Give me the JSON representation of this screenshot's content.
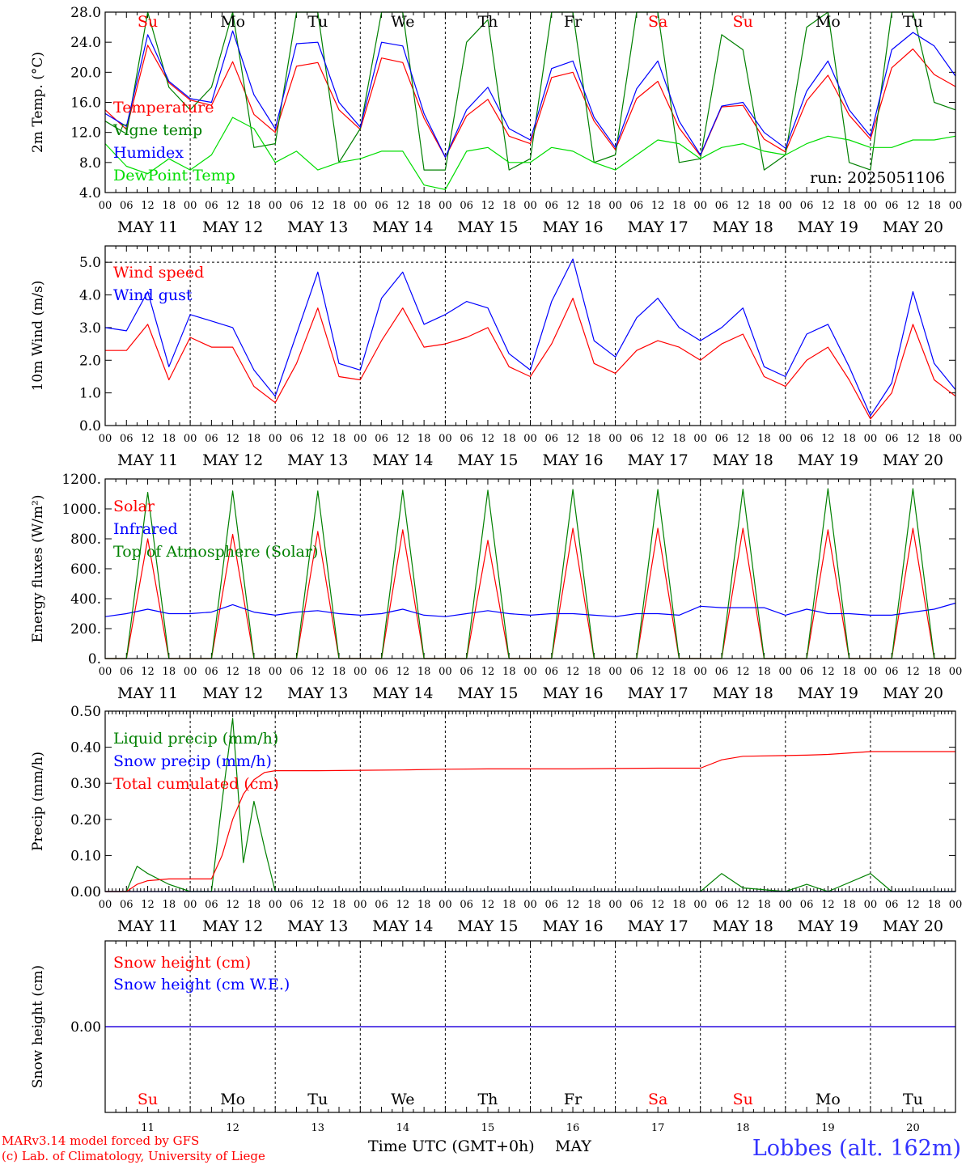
{
  "header": {
    "run_label": "run: 2025051106",
    "credit_line1": "MARv3.14 model forced by GFS",
    "credit_line2": "(c) Lab. of Climatology, University of Liege",
    "xaxis_title": "Time UTC (GMT+0h)",
    "month_label": "MAY",
    "station_label": "Lobbes (alt. 162m)"
  },
  "days": {
    "hour_ticks": [
      "00",
      "06",
      "12",
      "18"
    ],
    "final_tick": "00",
    "dates": [
      "MAY 11",
      "MAY 12",
      "MAY 13",
      "MAY 14",
      "MAY 15",
      "MAY 16",
      "MAY 17",
      "MAY 18",
      "MAY 19",
      "MAY 20"
    ],
    "weekdays": [
      "Su",
      "Mo",
      "Tu",
      "We",
      "Th",
      "Fr",
      "Sa",
      "Su",
      "Mo",
      "Tu"
    ],
    "weekend_flags": [
      true,
      false,
      false,
      false,
      false,
      false,
      true,
      true,
      false,
      false
    ],
    "day_numbers": [
      "11",
      "12",
      "13",
      "14",
      "15",
      "16",
      "17",
      "18",
      "19",
      "20"
    ]
  },
  "colors": {
    "red": "#ff0000",
    "blue": "#0000ff",
    "green": "#008000",
    "light_green": "#00dd00",
    "weekend": "#ff0000",
    "weekday": "#000000"
  },
  "chart_data": [
    {
      "type": "line",
      "ylabel": "2m Temp. (°C)",
      "ylim": [
        4.0,
        28.0
      ],
      "yticks": [
        "4.0",
        "8.0",
        "12.0",
        "16.0",
        "20.0",
        "24.0",
        "28.0"
      ],
      "x_hours": [
        0,
        6,
        12,
        18,
        24,
        30,
        36,
        42,
        48,
        54,
        60,
        66,
        72,
        78,
        84,
        90,
        96,
        102,
        108,
        114,
        120,
        126,
        132,
        138,
        144,
        150,
        156,
        162,
        168,
        174,
        180,
        186,
        192,
        198,
        204,
        210,
        216,
        222,
        228,
        234,
        240
      ],
      "series": [
        {
          "name": "Temperature",
          "color": "#ff0000",
          "values": [
            15.0,
            12.4,
            23.6,
            18.6,
            16.3,
            15.6,
            21.4,
            14.4,
            12.0,
            20.8,
            21.3,
            15.0,
            12.4,
            21.9,
            21.3,
            13.9,
            8.7,
            14.2,
            16.4,
            11.5,
            10.5,
            19.3,
            20.0,
            13.5,
            9.7,
            16.5,
            18.8,
            12.6,
            8.9,
            15.4,
            15.6,
            11.1,
            9.4,
            16.2,
            19.6,
            14.3,
            11.1,
            20.6,
            23.1,
            19.7,
            18.1
          ]
        },
        {
          "name": "Vigne temp",
          "color": "#008000",
          "values": [
            13.5,
            11.8,
            28.0,
            18.0,
            15.0,
            18.0,
            28.0,
            10.0,
            10.5,
            28.0,
            28.0,
            8.0,
            12.5,
            28.0,
            28.0,
            7.0,
            7.0,
            24.0,
            27.0,
            7.0,
            8.5,
            28.0,
            28.0,
            8.0,
            9.0,
            28.0,
            28.0,
            8.0,
            8.5,
            25.0,
            23.0,
            7.0,
            9.0,
            26.0,
            28.0,
            8.0,
            7.0,
            28.0,
            28.0,
            16.0,
            15.0
          ]
        },
        {
          "name": "Humidex",
          "color": "#0000ff",
          "values": [
            14.5,
            12.8,
            25.0,
            18.8,
            16.5,
            16.0,
            25.5,
            17.0,
            12.5,
            23.8,
            24.0,
            16.0,
            12.7,
            24.0,
            23.5,
            14.5,
            8.7,
            15.0,
            18.0,
            12.5,
            11.0,
            20.5,
            21.5,
            14.0,
            10.0,
            17.8,
            21.5,
            13.5,
            9.0,
            15.5,
            16.0,
            12.0,
            9.9,
            17.5,
            21.5,
            15.0,
            11.5,
            23.0,
            25.3,
            23.5,
            19.5
          ]
        },
        {
          "name": "DewPoint Temp",
          "color": "#00dd00",
          "values": [
            10.5,
            7.5,
            6.5,
            8.5,
            7.0,
            9.0,
            14.0,
            12.5,
            8.0,
            9.5,
            7.0,
            8.0,
            8.5,
            9.5,
            9.5,
            5.0,
            4.4,
            9.5,
            10.0,
            8.0,
            8.0,
            10.0,
            9.5,
            8.0,
            7.0,
            9.0,
            11.0,
            10.5,
            8.5,
            10.0,
            10.5,
            9.5,
            9.0,
            10.5,
            11.5,
            11.0,
            10.0,
            10.0,
            11.0,
            11.0,
            11.5
          ]
        }
      ]
    },
    {
      "type": "line",
      "ylabel": "10m Wind (m/s)",
      "ylim": [
        0.0,
        5.5
      ],
      "yticks": [
        "0.0",
        "1.0",
        "2.0",
        "3.0",
        "4.0",
        "5.0"
      ],
      "hline": 5.0,
      "x_hours": [
        0,
        6,
        12,
        18,
        24,
        30,
        36,
        42,
        48,
        54,
        60,
        66,
        72,
        78,
        84,
        90,
        96,
        102,
        108,
        114,
        120,
        126,
        132,
        138,
        144,
        150,
        156,
        162,
        168,
        174,
        180,
        186,
        192,
        198,
        204,
        210,
        216,
        222,
        228,
        234,
        240
      ],
      "series": [
        {
          "name": "Wind speed",
          "color": "#ff0000",
          "values": [
            2.3,
            2.3,
            3.1,
            1.4,
            2.7,
            2.4,
            2.4,
            1.2,
            0.7,
            1.9,
            3.6,
            1.5,
            1.4,
            2.6,
            3.6,
            2.4,
            2.5,
            2.7,
            3.0,
            1.8,
            1.5,
            2.5,
            3.9,
            1.9,
            1.6,
            2.3,
            2.6,
            2.4,
            2.0,
            2.5,
            2.8,
            1.5,
            1.2,
            2.0,
            2.4,
            1.4,
            0.2,
            1.0,
            3.1,
            1.4,
            0.9
          ]
        },
        {
          "name": "Wind gust",
          "color": "#0000ff",
          "values": [
            3.0,
            2.9,
            4.1,
            1.8,
            3.4,
            3.2,
            3.0,
            1.7,
            0.9,
            2.8,
            4.7,
            1.9,
            1.7,
            3.9,
            4.7,
            3.1,
            3.4,
            3.8,
            3.6,
            2.2,
            1.7,
            3.8,
            5.1,
            2.6,
            2.1,
            3.3,
            3.9,
            3.0,
            2.6,
            3.0,
            3.6,
            1.8,
            1.5,
            2.8,
            3.1,
            1.8,
            0.3,
            1.3,
            4.1,
            1.9,
            1.1
          ]
        }
      ]
    },
    {
      "type": "line",
      "ylabel": "Energy fluxes (W/m²)",
      "ylim": [
        0,
        1200
      ],
      "yticks": [
        "0.",
        "200.",
        "400.",
        "600.",
        "800.",
        "1000.",
        "1200."
      ],
      "x_hours": [
        0,
        6,
        12,
        18,
        24,
        30,
        36,
        42,
        48,
        54,
        60,
        66,
        72,
        78,
        84,
        90,
        96,
        102,
        108,
        114,
        120,
        126,
        132,
        138,
        144,
        150,
        156,
        162,
        168,
        174,
        180,
        186,
        192,
        198,
        204,
        210,
        216,
        222,
        228,
        234,
        240
      ],
      "series": [
        {
          "name": "Solar",
          "color": "#ff0000",
          "values": [
            0,
            0,
            800,
            0,
            0,
            0,
            830,
            0,
            0,
            0,
            850,
            0,
            0,
            0,
            860,
            0,
            0,
            0,
            790,
            0,
            0,
            0,
            870,
            0,
            0,
            0,
            870,
            0,
            0,
            0,
            870,
            0,
            0,
            0,
            860,
            0,
            0,
            0,
            870,
            0,
            0
          ]
        },
        {
          "name": "Infrared",
          "color": "#0000ff",
          "values": [
            280,
            300,
            330,
            300,
            300,
            310,
            360,
            310,
            290,
            310,
            320,
            300,
            290,
            300,
            330,
            290,
            280,
            300,
            320,
            300,
            290,
            300,
            300,
            290,
            280,
            300,
            300,
            290,
            350,
            340,
            340,
            340,
            290,
            330,
            300,
            300,
            290,
            290,
            310,
            330,
            370
          ]
        },
        {
          "name": "Top of Atmosphere (Solar)",
          "color": "#008000",
          "values": [
            0,
            0,
            1110,
            0,
            0,
            0,
            1120,
            0,
            0,
            0,
            1120,
            0,
            0,
            0,
            1125,
            0,
            0,
            0,
            1125,
            0,
            0,
            0,
            1130,
            0,
            0,
            0,
            1130,
            0,
            0,
            0,
            1132,
            0,
            0,
            0,
            1135,
            0,
            0,
            0,
            1135,
            0,
            0
          ]
        }
      ]
    },
    {
      "type": "line",
      "ylabel": "Precip (mm/h)",
      "ylim": [
        0.0,
        0.5
      ],
      "yticks": [
        "0.00",
        "0.10",
        "0.20",
        "0.30",
        "0.40",
        "0.50"
      ],
      "x_hours": [
        0,
        6,
        9,
        12,
        18,
        24,
        30,
        33,
        36,
        39,
        42,
        45,
        48,
        54,
        60,
        72,
        84,
        96,
        108,
        120,
        132,
        144,
        156,
        168,
        174,
        180,
        192,
        198,
        204,
        216,
        222,
        240
      ],
      "series": [
        {
          "name": "Liquid precip (mm/h)",
          "color": "#008000",
          "values": [
            0,
            0,
            0.07,
            0.05,
            0.02,
            0,
            0,
            0.25,
            0.48,
            0.08,
            0.25,
            0.12,
            0,
            0,
            0,
            0,
            0,
            0,
            0,
            0,
            0,
            0,
            0,
            0,
            0.05,
            0.01,
            0,
            0.02,
            0,
            0.05,
            0,
            0
          ]
        },
        {
          "name": "Snow precip (mm/h)",
          "color": "#0000ff",
          "values": [
            0,
            0,
            0,
            0,
            0,
            0,
            0,
            0,
            0,
            0,
            0,
            0,
            0,
            0,
            0,
            0,
            0,
            0,
            0,
            0,
            0,
            0,
            0,
            0,
            0,
            0,
            0,
            0,
            0,
            0,
            0,
            0
          ]
        },
        {
          "name": "Total cumulated (cm)",
          "color": "#ff0000",
          "values": [
            0,
            0,
            0.02,
            0.03,
            0.035,
            0.035,
            0.035,
            0.1,
            0.2,
            0.27,
            0.31,
            0.33,
            0.335,
            0.335,
            0.335,
            0.336,
            0.337,
            0.339,
            0.34,
            0.34,
            0.34,
            0.341,
            0.342,
            0.342,
            0.365,
            0.375,
            0.377,
            0.378,
            0.38,
            0.388,
            0.388,
            0.388
          ]
        }
      ]
    },
    {
      "type": "line",
      "ylabel": "Snow height (cm)",
      "ylim": [
        -1,
        1
      ],
      "yticks": [
        "0.00"
      ],
      "x_hours": [
        0,
        240
      ],
      "series": [
        {
          "name": "Snow height (cm)",
          "color": "#ff0000",
          "values": [
            0,
            0
          ]
        },
        {
          "name": "Snow height (cm W.E.)",
          "color": "#0000ff",
          "values": [
            0,
            0
          ]
        }
      ]
    }
  ]
}
